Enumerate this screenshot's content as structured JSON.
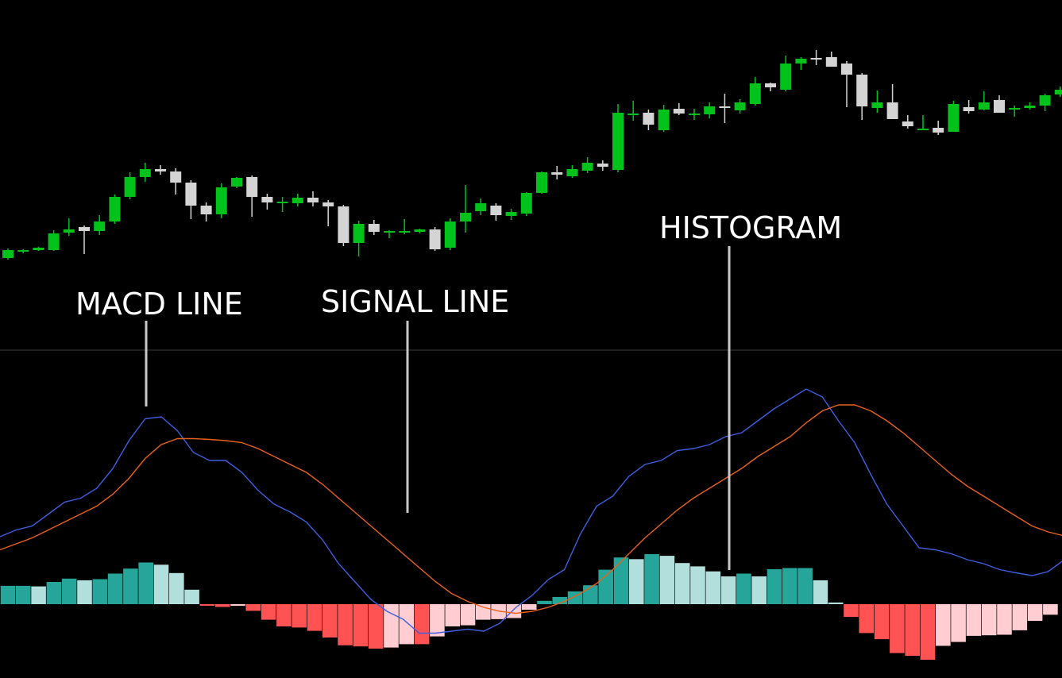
{
  "annotations": {
    "macd_line": "MACD LINE",
    "signal_line": "SIGNAL LINE",
    "histogram": "HISTOGRAM"
  },
  "colors": {
    "background": "#000000",
    "candle_up": "#00c21a",
    "candle_down": "#d4d4d4",
    "macd_line": "#3f5fe0",
    "signal_line": "#e8621c",
    "hist_pos_strong": "#26a69a",
    "hist_pos_weak": "#b2dfdb",
    "hist_neg_strong": "#ff5252",
    "hist_neg_weak": "#ffcdd2",
    "separator": "#3a3a3a",
    "pointer": "#c8c8c8"
  },
  "chart_data": [
    {
      "type": "candlestick",
      "title": "",
      "ohlc": [
        [
          100.0,
          101.2,
          99.8,
          101.0
        ],
        [
          101.0,
          101.1,
          100.6,
          101.0
        ],
        [
          101.0,
          101.4,
          100.9,
          101.3
        ],
        [
          101.0,
          103.5,
          100.9,
          103.1
        ],
        [
          103.2,
          105.0,
          102.8,
          103.6
        ],
        [
          103.9,
          104.1,
          100.5,
          103.4
        ],
        [
          103.4,
          105.4,
          102.9,
          104.6
        ],
        [
          104.6,
          108.0,
          104.3,
          107.7
        ],
        [
          107.7,
          110.8,
          107.4,
          110.2
        ],
        [
          110.2,
          112.0,
          109.6,
          111.2
        ],
        [
          111.2,
          111.7,
          110.5,
          110.9
        ],
        [
          110.9,
          111.3,
          108.0,
          109.5
        ],
        [
          109.5,
          109.8,
          104.9,
          106.6
        ],
        [
          106.6,
          107.0,
          104.6,
          105.5
        ],
        [
          105.5,
          109.4,
          105.0,
          108.9
        ],
        [
          109.0,
          110.2,
          108.8,
          110.1
        ],
        [
          110.2,
          110.4,
          105.2,
          107.7
        ],
        [
          107.7,
          108.1,
          106.1,
          107.0
        ],
        [
          107.1,
          107.7,
          105.8,
          107.1
        ],
        [
          106.9,
          108.1,
          106.5,
          107.6
        ],
        [
          107.6,
          108.4,
          106.5,
          107.0
        ],
        [
          107.0,
          107.3,
          104.0,
          106.5
        ],
        [
          106.5,
          106.7,
          101.5,
          101.9
        ],
        [
          101.9,
          104.7,
          100.2,
          104.3
        ],
        [
          104.3,
          104.8,
          102.9,
          103.3
        ],
        [
          103.2,
          103.5,
          102.5,
          103.4
        ],
        [
          103.4,
          104.9,
          103.0,
          103.4
        ],
        [
          103.3,
          103.7,
          103.1,
          103.6
        ],
        [
          103.6,
          103.9,
          100.9,
          101.1
        ],
        [
          101.3,
          105.0,
          101.0,
          104.6
        ],
        [
          104.6,
          109.2,
          103.2,
          105.7
        ],
        [
          105.9,
          107.5,
          105.4,
          106.9
        ],
        [
          106.6,
          106.9,
          104.7,
          105.4
        ],
        [
          105.3,
          106.2,
          104.8,
          105.8
        ],
        [
          105.6,
          108.3,
          105.3,
          108.2
        ],
        [
          108.2,
          110.9,
          108.1,
          110.8
        ],
        [
          110.8,
          111.6,
          109.9,
          110.5
        ],
        [
          110.3,
          111.7,
          110.1,
          111.2
        ],
        [
          111.0,
          112.7,
          110.7,
          112.0
        ],
        [
          111.9,
          112.3,
          111.0,
          111.5
        ],
        [
          111.1,
          119.4,
          110.8,
          118.3
        ],
        [
          118.2,
          119.8,
          117.3,
          118.2
        ],
        [
          118.3,
          118.7,
          116.1,
          116.8
        ],
        [
          116.1,
          119.3,
          115.9,
          118.7
        ],
        [
          118.8,
          119.5,
          118.0,
          118.2
        ],
        [
          118.2,
          118.8,
          117.4,
          118.2
        ],
        [
          118.1,
          119.6,
          117.6,
          119.1
        ],
        [
          119.1,
          120.7,
          117.0,
          118.9
        ],
        [
          118.6,
          120.0,
          118.2,
          119.6
        ],
        [
          119.4,
          122.8,
          119.2,
          122.0
        ],
        [
          122.0,
          122.1,
          121.0,
          121.5
        ],
        [
          121.2,
          125.5,
          121.0,
          124.5
        ],
        [
          124.5,
          125.3,
          123.7,
          125.1
        ],
        [
          125.2,
          126.2,
          124.3,
          125.0
        ],
        [
          125.3,
          126.0,
          124.1,
          124.1
        ],
        [
          124.5,
          124.8,
          119.0,
          123.1
        ],
        [
          123.1,
          123.3,
          117.4,
          119.1
        ],
        [
          118.9,
          121.1,
          118.3,
          119.6
        ],
        [
          119.6,
          121.9,
          117.5,
          117.5
        ],
        [
          117.2,
          118.0,
          116.3,
          116.6
        ],
        [
          116.3,
          118.0,
          116.2,
          116.3
        ],
        [
          116.4,
          117.3,
          115.5,
          115.8
        ],
        [
          115.9,
          119.8,
          115.9,
          119.4
        ],
        [
          119.0,
          119.9,
          118.2,
          118.5
        ],
        [
          118.7,
          121.0,
          118.6,
          119.6
        ],
        [
          119.9,
          120.5,
          118.5,
          118.3
        ],
        [
          118.8,
          119.2,
          117.8,
          118.9
        ],
        [
          118.9,
          119.6,
          118.7,
          119.2
        ],
        [
          119.2,
          120.7,
          118.5,
          120.5
        ],
        [
          120.6,
          121.6,
          120.3,
          121.2
        ]
      ],
      "ylim": [
        97,
        128
      ]
    },
    {
      "type": "line",
      "title": "",
      "series": [
        {
          "values": [
            0.58,
            0.75,
            0.85,
            1.15,
            1.45,
            1.55,
            1.8,
            2.3,
            3.0,
            3.55,
            3.6,
            3.25,
            2.7,
            2.5,
            2.5,
            2.2,
            1.75,
            1.4,
            1.2,
            0.95,
            0.5,
            -0.1,
            -0.55,
            -1.0,
            -1.3,
            -1.5,
            -1.85,
            -1.85,
            -1.8,
            -1.75,
            -1.8,
            -1.6,
            -1.2,
            -0.9,
            -0.5,
            -0.25,
            0.65,
            1.35,
            1.6,
            2.1,
            2.4,
            2.5,
            2.75,
            2.8,
            2.9,
            3.1,
            3.2,
            3.5,
            3.8,
            4.05,
            4.3,
            4.1,
            3.5,
            2.95,
            2.15,
            1.4,
            0.85,
            0.3,
            0.25,
            0.15,
            0.0,
            -0.1,
            -0.25,
            -0.33,
            -0.4,
            -0.3,
            0.0
          ]
        },
        {
          "values": [
            0.25,
            0.4,
            0.55,
            0.75,
            0.95,
            1.15,
            1.35,
            1.65,
            2.05,
            2.55,
            2.9,
            3.05,
            3.05,
            3.03,
            3.0,
            2.95,
            2.8,
            2.6,
            2.4,
            2.2,
            1.9,
            1.55,
            1.2,
            0.85,
            0.5,
            0.15,
            -0.2,
            -0.55,
            -0.85,
            -1.05,
            -1.2,
            -1.3,
            -1.35,
            -1.3,
            -1.2,
            -1.05,
            -0.85,
            -0.6,
            -0.25,
            0.15,
            0.55,
            0.9,
            1.25,
            1.55,
            1.8,
            2.05,
            2.3,
            2.6,
            2.85,
            3.1,
            3.45,
            3.75,
            3.9,
            3.9,
            3.75,
            3.5,
            3.2,
            2.85,
            2.5,
            2.15,
            1.85,
            1.6,
            1.35,
            1.1,
            0.85,
            0.7,
            0.6
          ]
        }
      ],
      "ylim": [
        -2.4,
        4.8
      ]
    },
    {
      "type": "bar",
      "title": "",
      "values": [
        0.33,
        0.33,
        0.32,
        0.4,
        0.46,
        0.43,
        0.45,
        0.55,
        0.64,
        0.75,
        0.71,
        0.56,
        0.26,
        -0.01,
        -0.05,
        -0.03,
        -0.12,
        -0.28,
        -0.4,
        -0.42,
        -0.48,
        -0.6,
        -0.74,
        -0.76,
        -0.8,
        -0.78,
        -0.72,
        -0.72,
        -0.58,
        -0.4,
        -0.38,
        -0.28,
        -0.27,
        -0.25,
        -0.1,
        0.06,
        0.13,
        0.23,
        0.34,
        0.62,
        0.84,
        0.81,
        0.9,
        0.87,
        0.74,
        0.68,
        0.59,
        0.5,
        0.55,
        0.5,
        0.63,
        0.65,
        0.65,
        0.43,
        0.03,
        -0.23,
        -0.52,
        -0.63,
        -0.88,
        -0.93,
        -1.0,
        -0.75,
        -0.68,
        -0.57,
        -0.56,
        -0.55,
        -0.47,
        -0.3,
        -0.19
      ],
      "ylim": [
        -1.1,
        1.1
      ]
    }
  ]
}
